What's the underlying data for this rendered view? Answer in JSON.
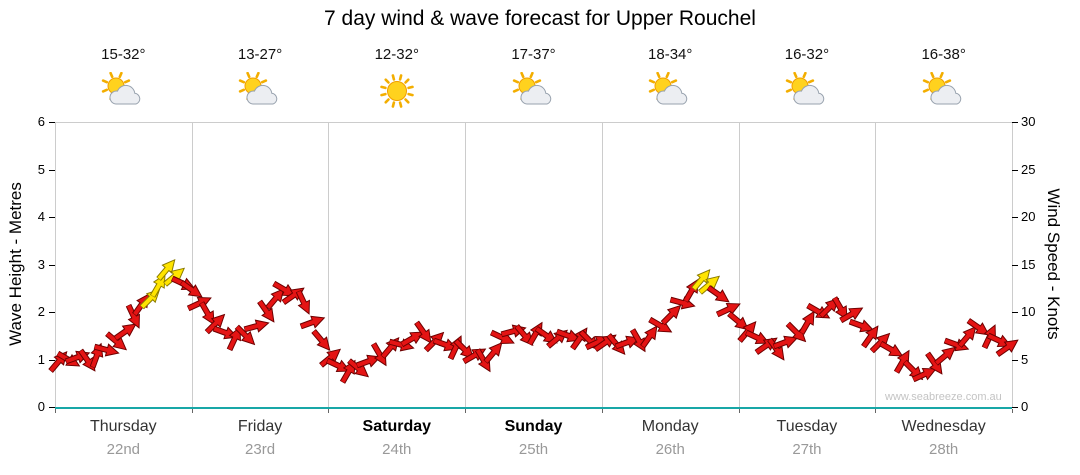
{
  "title": "7 day wind & wave forecast for Upper Rouchel",
  "watermark": "www.seabreeze.com.au",
  "axes": {
    "left_label": "Wave Height - Metres",
    "right_label": "Wind Speed - Knots",
    "left_ticks": [
      0,
      1,
      2,
      3,
      4,
      5,
      6
    ],
    "right_ticks": [
      0,
      5,
      10,
      15,
      20,
      25,
      30
    ]
  },
  "days": [
    {
      "name": "Thursday",
      "date": "22nd",
      "temp": "15-32°",
      "icon": "sun-cloud",
      "weekend": false
    },
    {
      "name": "Friday",
      "date": "23rd",
      "temp": "13-27°",
      "icon": "sun-cloud",
      "weekend": false
    },
    {
      "name": "Saturday",
      "date": "24th",
      "temp": "12-32°",
      "icon": "sun",
      "weekend": true
    },
    {
      "name": "Sunday",
      "date": "25th",
      "temp": "17-37°",
      "icon": "sun-cloud",
      "weekend": true
    },
    {
      "name": "Monday",
      "date": "26th",
      "temp": "18-34°",
      "icon": "sun-cloud",
      "weekend": false
    },
    {
      "name": "Tuesday",
      "date": "27th",
      "temp": "16-32°",
      "icon": "sun-cloud",
      "weekend": false
    },
    {
      "name": "Wednesday",
      "date": "28th",
      "temp": "16-38°",
      "icon": "sun-cloud",
      "weekend": false
    }
  ],
  "colors": {
    "arrow": "#e41414",
    "arrow_outline": "#6d0000",
    "arrow_strong": "#ffe400",
    "arrow_strong_outline": "#8a7a00",
    "baseline": "#18a7a7",
    "grid": "#cccccc"
  },
  "chart_data": {
    "type": "wind-arrows",
    "title": "7 day wind & wave forecast for Upper Rouchel",
    "x_days": [
      "Thursday 22nd",
      "Friday 23rd",
      "Saturday 24th",
      "Sunday 25th",
      "Monday 26th",
      "Tuesday 27th",
      "Wednesday 28th"
    ],
    "daily_summary": [
      {
        "day": "Thursday 22nd",
        "temp_range_c": "15-32",
        "sky": "sun-cloud"
      },
      {
        "day": "Friday 23rd",
        "temp_range_c": "13-27",
        "sky": "sun-cloud"
      },
      {
        "day": "Saturday 24th",
        "temp_range_c": "12-32",
        "sky": "sun"
      },
      {
        "day": "Sunday 25th",
        "temp_range_c": "17-37",
        "sky": "sun-cloud"
      },
      {
        "day": "Monday 26th",
        "temp_range_c": "18-34",
        "sky": "sun-cloud"
      },
      {
        "day": "Tuesday 27th",
        "temp_range_c": "16-32",
        "sky": "sun-cloud"
      },
      {
        "day": "Wednesday 28th",
        "temp_range_c": "16-38",
        "sky": "sun-cloud"
      }
    ],
    "y_left": {
      "label": "Wave Height - Metres",
      "min": 0,
      "max": 6
    },
    "y_right": {
      "label": "Wind Speed - Knots",
      "min": 0,
      "max": 30
    },
    "legend": "red arrows = forecast wind, yellow arrows = strongest wind",
    "point_format": [
      "day_offset",
      "wind_knots",
      "direction_deg",
      "is_strong_yellow"
    ],
    "points": [
      [
        0.03,
        4.8,
        -50
      ],
      [
        0.1,
        5.0,
        30
      ],
      [
        0.17,
        5.3,
        -20
      ],
      [
        0.24,
        4.8,
        55
      ],
      [
        0.31,
        5.5,
        -70
      ],
      [
        0.38,
        6.0,
        15
      ],
      [
        0.45,
        6.8,
        40
      ],
      [
        0.52,
        8.0,
        -35
      ],
      [
        0.58,
        9.5,
        65
      ],
      [
        0.64,
        10.8,
        -55
      ],
      [
        0.7,
        11.5,
        -45,
        1
      ],
      [
        0.76,
        12.8,
        -60,
        1
      ],
      [
        0.82,
        14.5,
        -50,
        1
      ],
      [
        0.88,
        13.8,
        -40,
        1
      ],
      [
        0.94,
        13.0,
        25
      ],
      [
        1.0,
        12.3,
        35
      ],
      [
        1.06,
        11.0,
        -25
      ],
      [
        1.12,
        9.8,
        60
      ],
      [
        1.18,
        8.8,
        -45
      ],
      [
        1.25,
        7.8,
        20
      ],
      [
        1.32,
        7.3,
        -65
      ],
      [
        1.4,
        7.5,
        45
      ],
      [
        1.48,
        8.5,
        -15
      ],
      [
        1.55,
        10.0,
        55
      ],
      [
        1.62,
        11.5,
        -50
      ],
      [
        1.68,
        12.3,
        30
      ],
      [
        1.75,
        11.8,
        -35
      ],
      [
        1.82,
        11.0,
        65
      ],
      [
        1.89,
        9.0,
        -20
      ],
      [
        1.95,
        7.0,
        50
      ],
      [
        2.02,
        5.3,
        -40
      ],
      [
        2.08,
        4.3,
        25
      ],
      [
        2.15,
        3.8,
        -60
      ],
      [
        2.22,
        4.0,
        40
      ],
      [
        2.3,
        4.8,
        -20
      ],
      [
        2.38,
        5.5,
        60
      ],
      [
        2.46,
        6.3,
        -50
      ],
      [
        2.54,
        6.5,
        15
      ],
      [
        2.62,
        7.3,
        -30
      ],
      [
        2.7,
        7.8,
        55
      ],
      [
        2.78,
        7.0,
        -45
      ],
      [
        2.86,
        6.5,
        20
      ],
      [
        2.93,
        6.3,
        -65
      ],
      [
        3.0,
        6.0,
        45
      ],
      [
        3.07,
        5.5,
        -30
      ],
      [
        3.14,
        4.8,
        60
      ],
      [
        3.21,
        5.8,
        -50
      ],
      [
        3.28,
        7.3,
        25
      ],
      [
        3.36,
        8.0,
        -15
      ],
      [
        3.44,
        7.5,
        50
      ],
      [
        3.52,
        7.8,
        -60
      ],
      [
        3.6,
        7.5,
        35
      ],
      [
        3.68,
        7.3,
        -40
      ],
      [
        3.76,
        7.5,
        20
      ],
      [
        3.84,
        7.3,
        -55
      ],
      [
        3.91,
        7.0,
        45
      ],
      [
        3.97,
        6.8,
        -25
      ],
      [
        4.03,
        6.8,
        -35
      ],
      [
        4.11,
        6.5,
        50
      ],
      [
        4.19,
        6.8,
        -20
      ],
      [
        4.27,
        7.0,
        60
      ],
      [
        4.35,
        7.5,
        -55
      ],
      [
        4.43,
        8.5,
        30
      ],
      [
        4.51,
        9.8,
        -45
      ],
      [
        4.59,
        11.0,
        15
      ],
      [
        4.66,
        12.3,
        -60
      ],
      [
        4.73,
        13.5,
        -50,
        1
      ],
      [
        4.79,
        13.0,
        -40,
        1
      ],
      [
        4.86,
        11.8,
        35
      ],
      [
        4.93,
        10.3,
        -25
      ],
      [
        5.0,
        9.0,
        40
      ],
      [
        5.07,
        8.0,
        -50
      ],
      [
        5.14,
        7.3,
        25
      ],
      [
        5.21,
        6.5,
        -35
      ],
      [
        5.28,
        6.0,
        55
      ],
      [
        5.35,
        6.8,
        -20
      ],
      [
        5.43,
        7.8,
        45
      ],
      [
        5.51,
        9.0,
        -60
      ],
      [
        5.59,
        10.0,
        30
      ],
      [
        5.67,
        10.5,
        -45
      ],
      [
        5.75,
        10.3,
        60
      ],
      [
        5.83,
        9.8,
        -30
      ],
      [
        5.9,
        8.5,
        20
      ],
      [
        5.97,
        7.5,
        -55
      ],
      [
        6.04,
        6.8,
        -45
      ],
      [
        6.12,
        6.0,
        30
      ],
      [
        6.2,
        4.8,
        -60
      ],
      [
        6.28,
        3.8,
        45
      ],
      [
        6.36,
        3.5,
        -25
      ],
      [
        6.44,
        4.5,
        55
      ],
      [
        6.52,
        5.5,
        -40
      ],
      [
        6.6,
        6.5,
        20
      ],
      [
        6.68,
        7.5,
        -50
      ],
      [
        6.76,
        8.3,
        35
      ],
      [
        6.84,
        7.5,
        -65
      ],
      [
        6.91,
        7.0,
        25
      ],
      [
        6.97,
        6.3,
        -35
      ]
    ]
  }
}
